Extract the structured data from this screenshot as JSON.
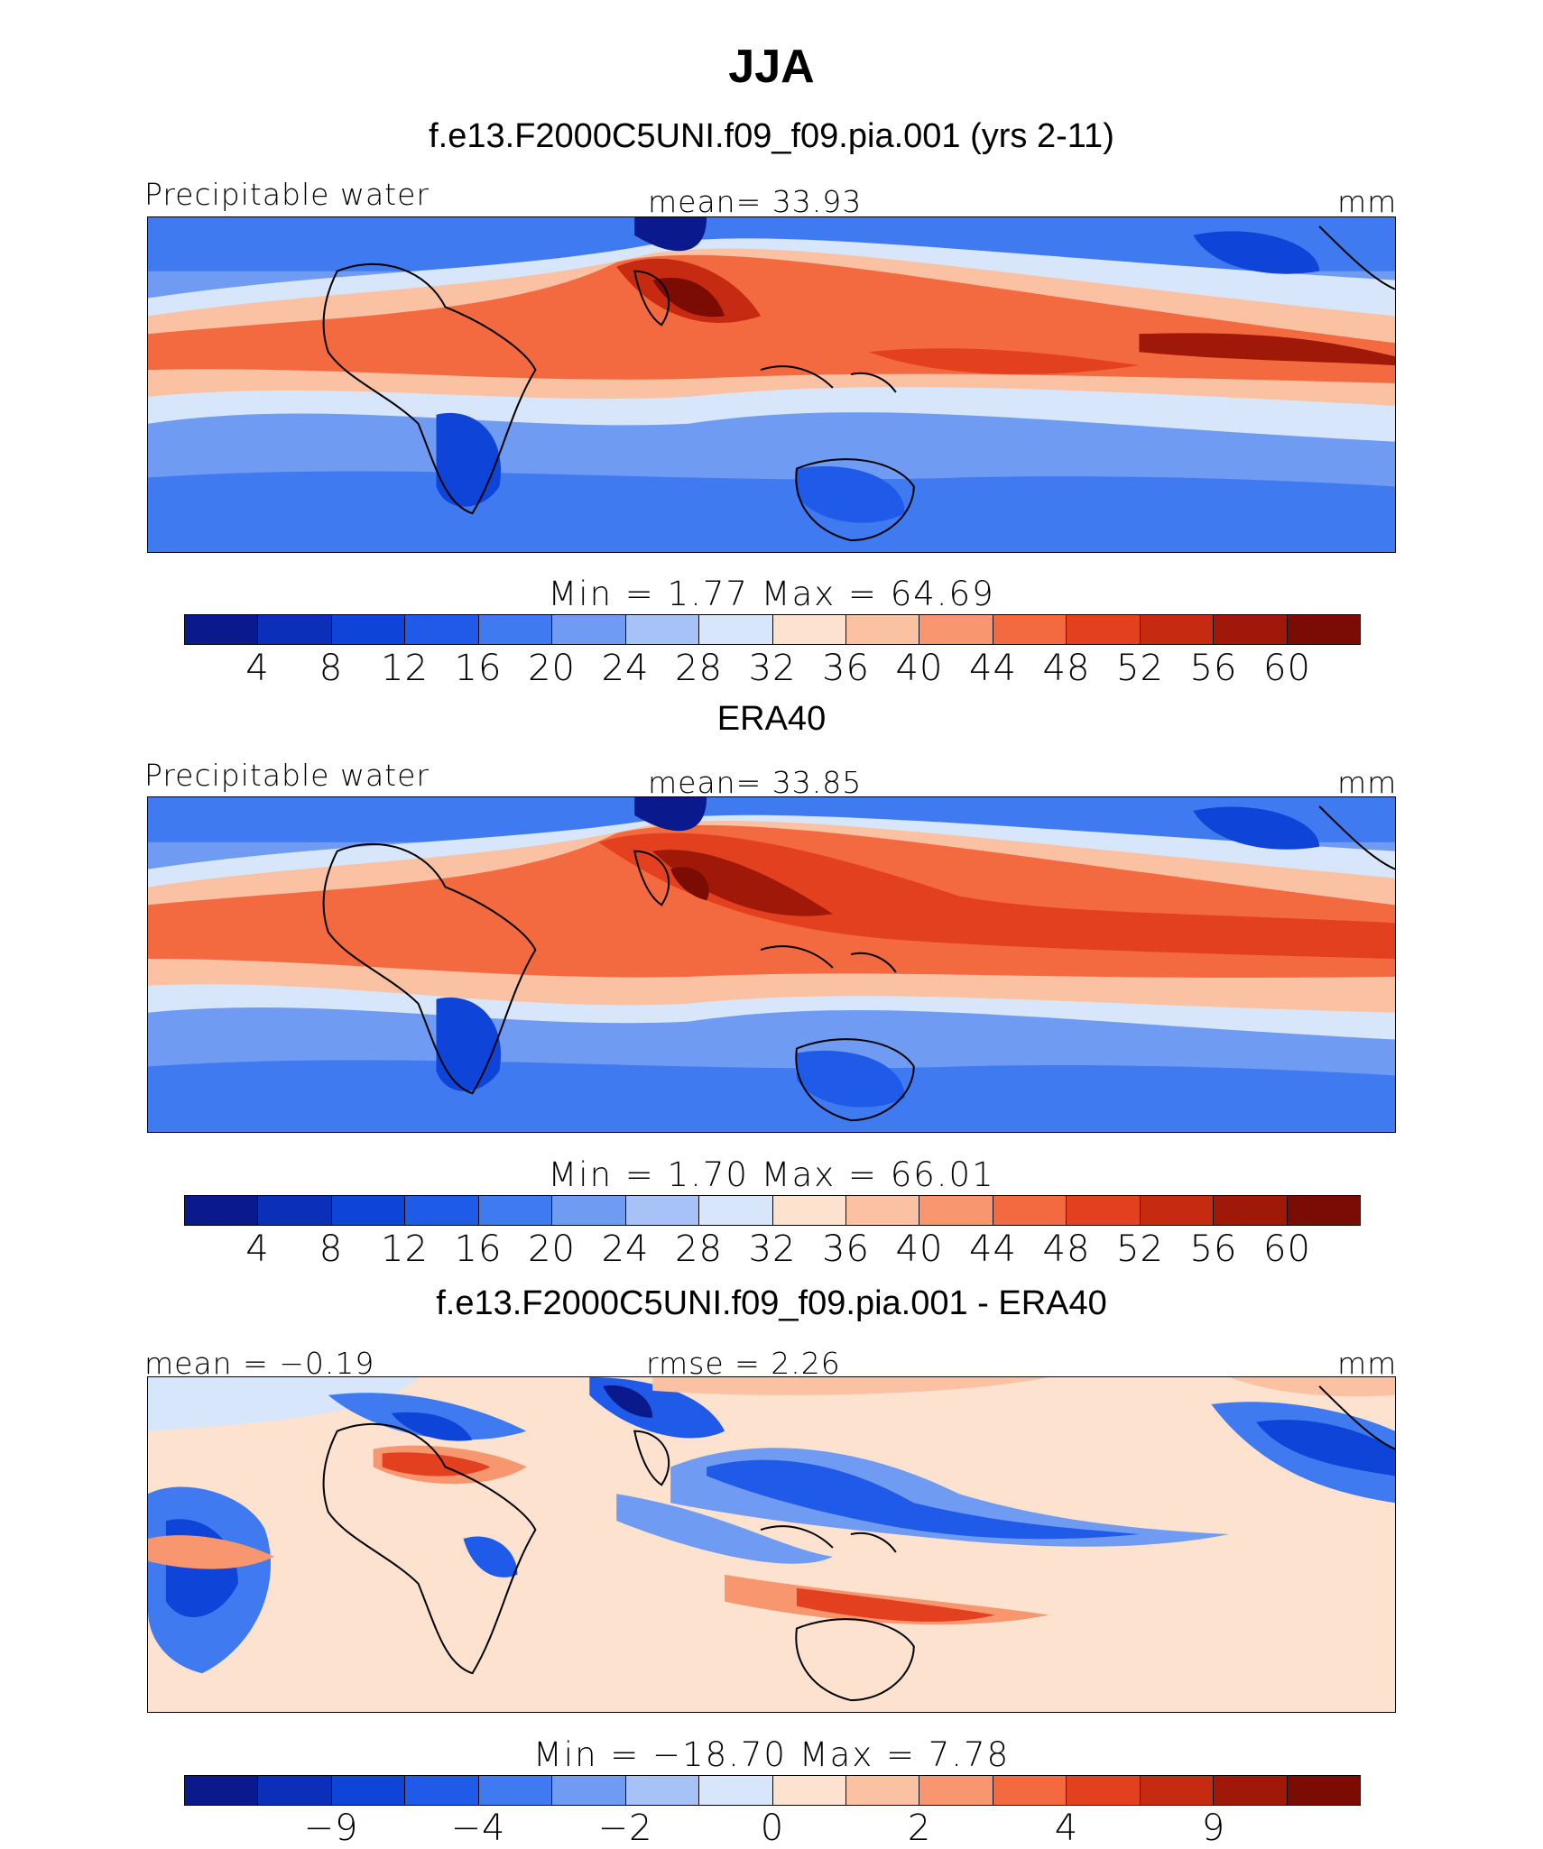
{
  "figure": {
    "title": "JJA"
  },
  "panels": [
    {
      "title": "f.e13.F2000C5UNI.f09_f09.pia.001 (yrs 2-11)",
      "left_label": "Precipitable water",
      "center_label": "mean=   33.93",
      "right_label": "mm",
      "stats": "Min  =     1.77  Max  =    64.69",
      "colorbar": {
        "colors": [
          "#0a1a8c",
          "#0b2fb8",
          "#0f44d9",
          "#1f5be8",
          "#3f7af0",
          "#6f9bf2",
          "#a6c2f7",
          "#d7e6fb",
          "#fde2cf",
          "#fbc1a3",
          "#f7966f",
          "#f36a41",
          "#e34020",
          "#c62a10",
          "#a01808",
          "#7a0c04"
        ],
        "ticks": [
          "4",
          "8",
          "12",
          "16",
          "20",
          "24",
          "28",
          "32",
          "36",
          "40",
          "44",
          "48",
          "52",
          "56",
          "60"
        ]
      }
    },
    {
      "title": "ERA40",
      "left_label": "Precipitable water",
      "center_label": "mean=   33.85",
      "right_label": "mm",
      "stats": "Min  =     1.70  Max  =    66.01",
      "colorbar": {
        "colors": [
          "#0a1a8c",
          "#0b2fb8",
          "#0f44d9",
          "#1f5be8",
          "#3f7af0",
          "#6f9bf2",
          "#a6c2f7",
          "#d7e6fb",
          "#fde2cf",
          "#fbc1a3",
          "#f7966f",
          "#f36a41",
          "#e34020",
          "#c62a10",
          "#a01808",
          "#7a0c04"
        ],
        "ticks": [
          "4",
          "8",
          "12",
          "16",
          "20",
          "24",
          "28",
          "32",
          "36",
          "40",
          "44",
          "48",
          "52",
          "56",
          "60"
        ]
      }
    },
    {
      "title": "f.e13.F2000C5UNI.f09_f09.pia.001 - ERA40",
      "left_label": "mean =   −0.19",
      "center_label": "rmse =    2.26",
      "right_label": "mm",
      "stats": "Min  = −18.70  Max  =     7.78",
      "colorbar": {
        "colors": [
          "#0a1a8c",
          "#0b2fb8",
          "#0f44d9",
          "#1f5be8",
          "#3f7af0",
          "#6f9bf2",
          "#a6c2f7",
          "#d7e6fb",
          "#fde2cf",
          "#fbc1a3",
          "#f7966f",
          "#f36a41",
          "#e34020",
          "#c62a10",
          "#a01808",
          "#7a0c04"
        ],
        "ticks": [
          "−9",
          "−4",
          "−2",
          "0",
          "2",
          "4",
          "9"
        ]
      }
    }
  ]
}
